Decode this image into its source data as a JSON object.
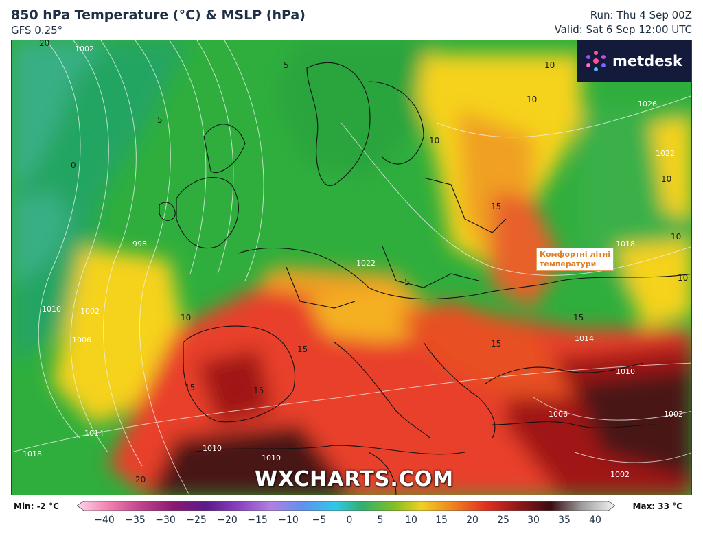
{
  "header": {
    "title": "850 hPa Temperature (°C) & MSLP (hPa)",
    "subtitle": "GFS 0.25°",
    "run": "Run: Thu 4 Sep 00Z",
    "valid": "Valid: Sat 6 Sep 12:00 UTC"
  },
  "logo": {
    "text": "metdesk",
    "icon": "metdesk-logo-icon"
  },
  "annotation": {
    "line1": "Комфортні літні",
    "line2": "температури"
  },
  "watermark": "WXCHARTS.COM",
  "legend": {
    "min_label": "Min: -2 °C",
    "max_label": "Max: 33 °C",
    "ticks": [
      "−40",
      "−35",
      "−30",
      "−25",
      "−20",
      "−15",
      "−10",
      "−5",
      "0",
      "5",
      "10",
      "15",
      "20",
      "25",
      "30",
      "35",
      "40"
    ]
  },
  "isobar_labels": [
    "1002",
    "998",
    "1010",
    "1002",
    "1006",
    "1014",
    "1018",
    "1010",
    "1010",
    "1022",
    "1026",
    "1022",
    "1018",
    "1014",
    "1010",
    "1006",
    "1002",
    "1002"
  ],
  "temperature_labels": [
    "20",
    "0",
    "5",
    "5",
    "10",
    "5",
    "10",
    "15",
    "10",
    "10",
    "10",
    "15",
    "15",
    "15",
    "15",
    "15",
    "10",
    "20",
    "10"
  ],
  "colors": {
    "cold": "#8ee0e8",
    "green_dark": "#1e9a4a",
    "green": "#2fae3d",
    "yellow": "#f5d21a",
    "orange": "#f0a020",
    "red": "#e8402a",
    "darkred": "#a01818",
    "maroon": "#4a1418"
  }
}
